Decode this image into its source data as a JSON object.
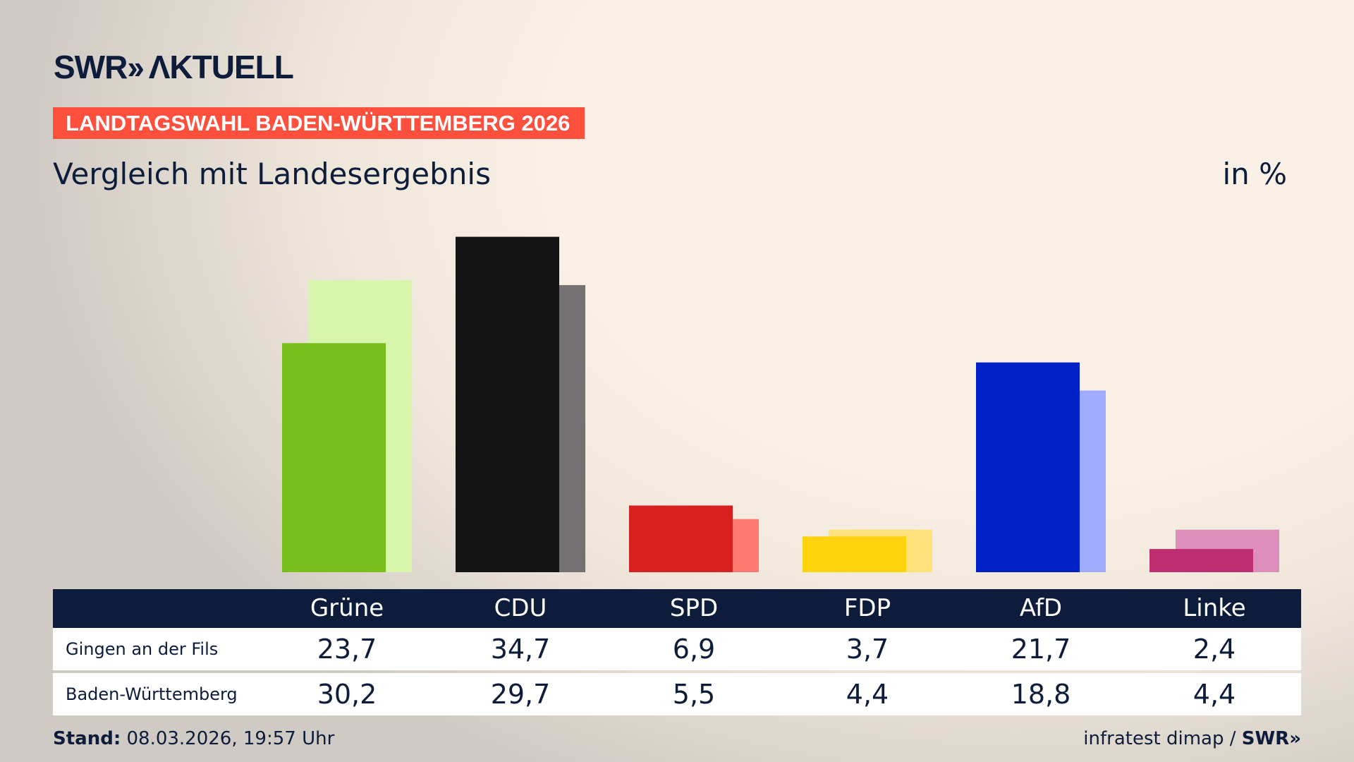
{
  "brand": {
    "logo": "SWR» AKTUELL",
    "footer_logo": "SWR»"
  },
  "banner": "LANDTAGSWAHL BADEN-WÜRTTEMBERG 2026",
  "subtitle": "Vergleich mit Landesergebnis",
  "unit": "in %",
  "footer": {
    "stand_label": "Stand:",
    "stand_value": "08.03.2026, 19:57 Uhr",
    "source": "infratest dimap /"
  },
  "chart_data": {
    "type": "bar",
    "categories": [
      "Grüne",
      "CDU",
      "SPD",
      "FDP",
      "AfD",
      "Linke"
    ],
    "series": [
      {
        "name": "Gingen an der Fils",
        "values": [
          23.7,
          34.7,
          6.9,
          3.7,
          21.7,
          2.4
        ],
        "colors": [
          "#79bf1b",
          "#141414",
          "#d82020",
          "#ffd20e",
          "#0020c8",
          "#bd2f72"
        ]
      },
      {
        "name": "Baden-Württemberg",
        "values": [
          30.2,
          29.7,
          5.5,
          4.4,
          18.8,
          4.4
        ],
        "colors": [
          "#d8f5ac",
          "#737171",
          "#ff7a72",
          "#ffe17a",
          "#9fabff",
          "#de8ebc"
        ]
      }
    ],
    "value_labels": [
      [
        "23,7",
        "34,7",
        "6,9",
        "3,7",
        "21,7",
        "2,4"
      ],
      [
        "30,2",
        "29,7",
        "5,5",
        "4,4",
        "18,8",
        "4,4"
      ]
    ],
    "ylim": [
      0,
      35
    ],
    "grid": false
  }
}
